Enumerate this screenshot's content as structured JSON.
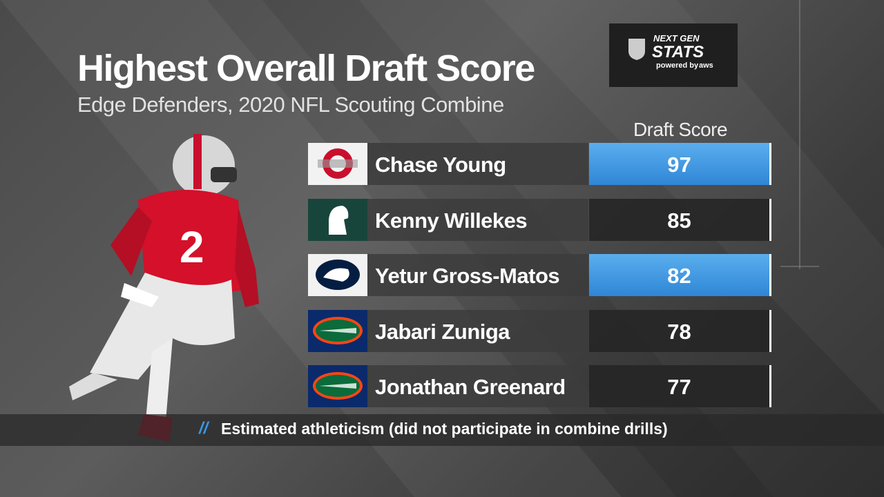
{
  "header": {
    "title": "Highest Overall Draft Score",
    "subtitle": "Edge Defenders, 2020 NFL Scouting Combine"
  },
  "logo": {
    "line1": "NEXT GEN",
    "line2": "STATS",
    "line3": "powered by",
    "line4": "aws"
  },
  "table": {
    "column_header": "Draft Score",
    "rows": [
      {
        "name": "Chase Young",
        "score": 97,
        "estimated": true
      },
      {
        "name": "Kenny Willekes",
        "score": 85,
        "estimated": false
      },
      {
        "name": "Yetur Gross-Matos",
        "score": 82,
        "estimated": true
      },
      {
        "name": "Jabari Zuniga",
        "score": 78,
        "estimated": false
      },
      {
        "name": "Jonathan Greenard",
        "score": 77,
        "estimated": false
      }
    ]
  },
  "footnote": {
    "marker": "//",
    "text": "Estimated athleticism (did not participate in combine drills)"
  }
}
